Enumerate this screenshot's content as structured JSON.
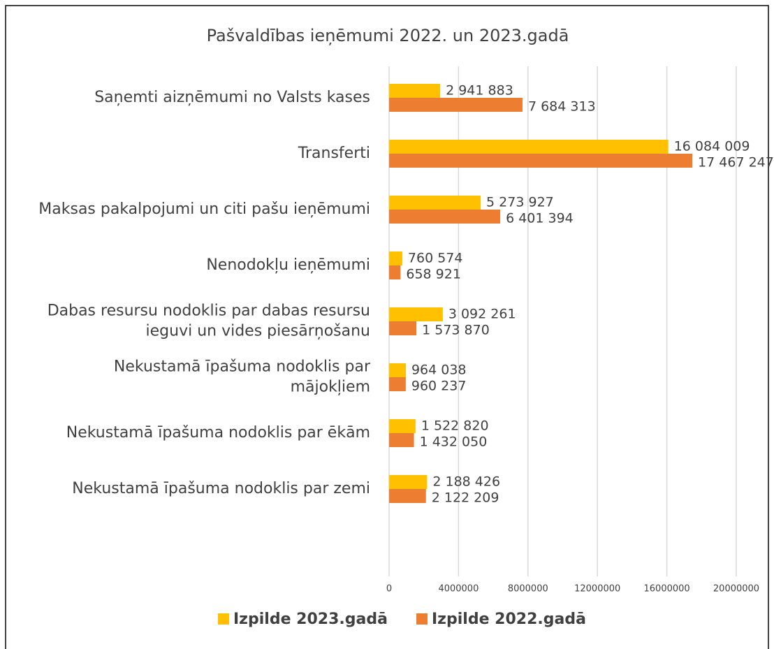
{
  "chart_data": {
    "type": "barh",
    "title": "Pašvaldības ieņēmumi 2022. un 2023.gadā",
    "categories": [
      "Saņemti aizņēmumi no Valsts kases",
      "Transferti",
      "Maksas pakalpojumi un citi pašu ieņēmumi",
      "Nenodokļu ieņēmumi",
      "Dabas resursu nodoklis par dabas resursu\nieguvi un vides piesārņošanu",
      "Nekustamā īpašuma nodoklis par\nmājokļiem",
      "Nekustamā īpašuma nodoklis par ēkām",
      "Nekustamā īpašuma nodoklis par zemi"
    ],
    "series": [
      {
        "name": "Izpilde 2023.gadā",
        "color": "#FFC000",
        "values": [
          2941883,
          16084009,
          5273927,
          760574,
          3092261,
          964038,
          1522820,
          2188426
        ],
        "value_labels": [
          "2 941 883",
          "16 084 009",
          "5 273 927",
          "760 574",
          "3 092 261",
          "964 038",
          "1 522 820",
          "2 188 426"
        ]
      },
      {
        "name": "Izpilde 2022.gadā",
        "color": "#ED7D31",
        "values": [
          7684313,
          17467247,
          6401394,
          658921,
          1573870,
          960237,
          1432050,
          2122209
        ],
        "value_labels": [
          "7 684 313",
          "17 467 247",
          "6 401 394",
          "658 921",
          "1 573 870",
          "960 237",
          "1 432 050",
          "2 122 209"
        ]
      }
    ],
    "xlim": [
      0,
      20000000
    ],
    "xticks": [
      0,
      4000000,
      8000000,
      12000000,
      16000000,
      20000000
    ],
    "grid": true,
    "legend": "bottom"
  }
}
